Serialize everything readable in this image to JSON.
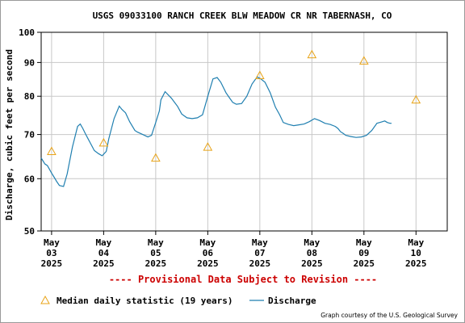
{
  "chart_data": {
    "type": "line",
    "title": "USGS 09033100 RANCH CREEK BLW MEADOW CR NR TABERNASH, CO",
    "ylabel": "Discharge, cubic feet per second",
    "xlabel": "",
    "y_scale": "log",
    "ylim": [
      50,
      100
    ],
    "y_ticks": [
      50,
      60,
      70,
      80,
      90,
      100
    ],
    "grid": true,
    "x_ticks": [
      {
        "x": 3,
        "month": "May",
        "day": "03",
        "year": "2025"
      },
      {
        "x": 4,
        "month": "May",
        "day": "04",
        "year": "2025"
      },
      {
        "x": 5,
        "month": "May",
        "day": "05",
        "year": "2025"
      },
      {
        "x": 6,
        "month": "May",
        "day": "06",
        "year": "2025"
      },
      {
        "x": 7,
        "month": "May",
        "day": "07",
        "year": "2025"
      },
      {
        "x": 8,
        "month": "May",
        "day": "08",
        "year": "2025"
      },
      {
        "x": 9,
        "month": "May",
        "day": "09",
        "year": "2025"
      },
      {
        "x": 10,
        "month": "May",
        "day": "10",
        "year": "2025"
      }
    ],
    "xlim": [
      2.8,
      10.6
    ],
    "series": [
      {
        "name": "Discharge",
        "color": "#1f7fb0",
        "x": [
          2.8,
          2.87,
          2.92,
          3.0,
          3.05,
          3.1,
          3.15,
          3.23,
          3.3,
          3.4,
          3.5,
          3.55,
          3.6,
          3.65,
          3.7,
          3.75,
          3.82,
          3.9,
          3.97,
          4.05,
          4.1,
          4.2,
          4.3,
          4.35,
          4.42,
          4.5,
          4.6,
          4.65,
          4.75,
          4.85,
          4.92,
          5.0,
          5.07,
          5.1,
          5.18,
          5.3,
          5.42,
          5.5,
          5.6,
          5.7,
          5.8,
          5.9,
          6.0,
          6.1,
          6.18,
          6.25,
          6.35,
          6.42,
          6.48,
          6.55,
          6.65,
          6.75,
          6.85,
          6.95,
          7.02,
          7.1,
          7.2,
          7.3,
          7.38,
          7.45,
          7.55,
          7.65,
          7.75,
          7.85,
          7.95,
          8.05,
          8.15,
          8.25,
          8.35,
          8.45,
          8.5,
          8.55,
          8.6,
          8.65,
          8.75,
          8.85,
          8.95,
          9.05,
          9.15,
          9.25,
          9.33,
          9.4,
          9.45,
          9.5,
          9.53
        ],
        "values": [
          64.5,
          63.2,
          62.8,
          61.2,
          60.3,
          59.4,
          58.6,
          58.4,
          61.0,
          67.0,
          72.0,
          72.6,
          71.5,
          70.2,
          69.0,
          67.8,
          66.2,
          65.5,
          65.0,
          66.0,
          69.0,
          74.0,
          77.3,
          76.4,
          75.5,
          73.2,
          71.0,
          70.6,
          70.0,
          69.4,
          69.8,
          73.0,
          76.0,
          79.0,
          81.3,
          79.5,
          77.2,
          75.2,
          74.2,
          74.0,
          74.2,
          75.0,
          80.0,
          85.0,
          85.4,
          84.0,
          81.0,
          79.5,
          78.3,
          77.8,
          78.0,
          80.0,
          83.5,
          85.6,
          85.0,
          84.0,
          81.0,
          77.0,
          75.0,
          73.0,
          72.5,
          72.2,
          72.4,
          72.6,
          73.2,
          74.0,
          73.5,
          72.8,
          72.5,
          72.0,
          71.5,
          70.7,
          70.3,
          69.8,
          69.5,
          69.3,
          69.4,
          69.8,
          71.0,
          72.8,
          73.1,
          73.4,
          73.0,
          72.8,
          72.8
        ]
      },
      {
        "name": "Median daily statistic (19 years)",
        "color": "#e8a317",
        "marker": "triangle",
        "x": [
          3.0,
          4.0,
          5.0,
          6.0,
          7.0,
          8.0,
          9.0,
          10.0
        ],
        "values": [
          66.0,
          68.0,
          64.5,
          67.0,
          86.0,
          92.5,
          90.5,
          79.0
        ]
      }
    ]
  },
  "notice": "---- Provisional Data Subject to Revision ----",
  "legend": {
    "median_label": "Median daily statistic (19 years)",
    "discharge_label": "Discharge"
  },
  "credit": "Graph courtesy of the U.S. Geological Survey",
  "colors": {
    "discharge": "#1f7fb0",
    "median": "#e8a317",
    "notice": "#cc0000",
    "grid": "#c8c8c8"
  }
}
